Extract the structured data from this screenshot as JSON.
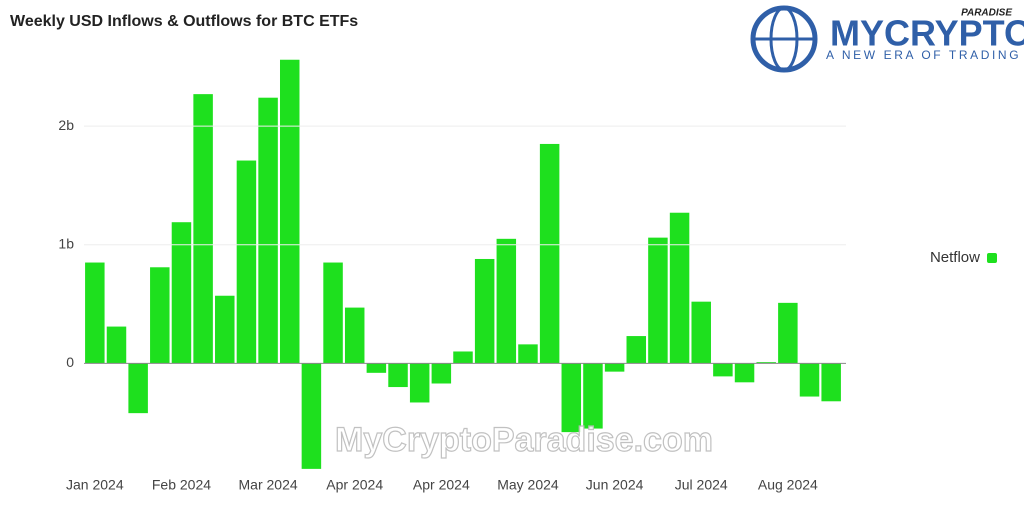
{
  "chart_data": {
    "type": "bar",
    "title": "Weekly USD Inflows & Outflows for BTC ETFs",
    "categories": [
      "Jan 2024",
      null,
      null,
      null,
      "Feb 2024",
      null,
      null,
      null,
      "Mar 2024",
      null,
      null,
      null,
      "Apr 2024",
      null,
      null,
      null,
      "Apr 2024",
      null,
      null,
      null,
      "May 2024",
      null,
      null,
      null,
      "Jun 2024",
      null,
      null,
      null,
      "Jul 2024",
      null,
      null,
      null,
      "Aug 2024",
      null,
      null
    ],
    "series": [
      {
        "name": "Netflow",
        "color": "#1ee01e",
        "values": [
          0.85,
          0.31,
          -0.42,
          0.81,
          1.19,
          2.27,
          0.57,
          1.71,
          2.24,
          2.56,
          -0.89,
          0.85,
          0.47,
          -0.08,
          -0.2,
          -0.33,
          -0.17,
          0.1,
          0.88,
          1.05,
          0.16,
          1.85,
          -0.58,
          -0.55,
          -0.07,
          0.23,
          1.06,
          1.27,
          0.52,
          -0.11,
          -0.16,
          0.01,
          0.51,
          -0.28,
          -0.32
        ]
      }
    ],
    "ylim": [
      -0.95,
      2.6
    ],
    "yticks": [
      0,
      {
        "value": 1,
        "label": "1b"
      },
      {
        "value": 2,
        "label": "2b"
      }
    ],
    "grid": true,
    "legend": "right"
  },
  "logo": {
    "name": "MYCRYPTO",
    "tag": "PARADISE",
    "slogan": "A NEW ERA OF TRADING"
  },
  "watermark": "MyCryptoParadise.com"
}
